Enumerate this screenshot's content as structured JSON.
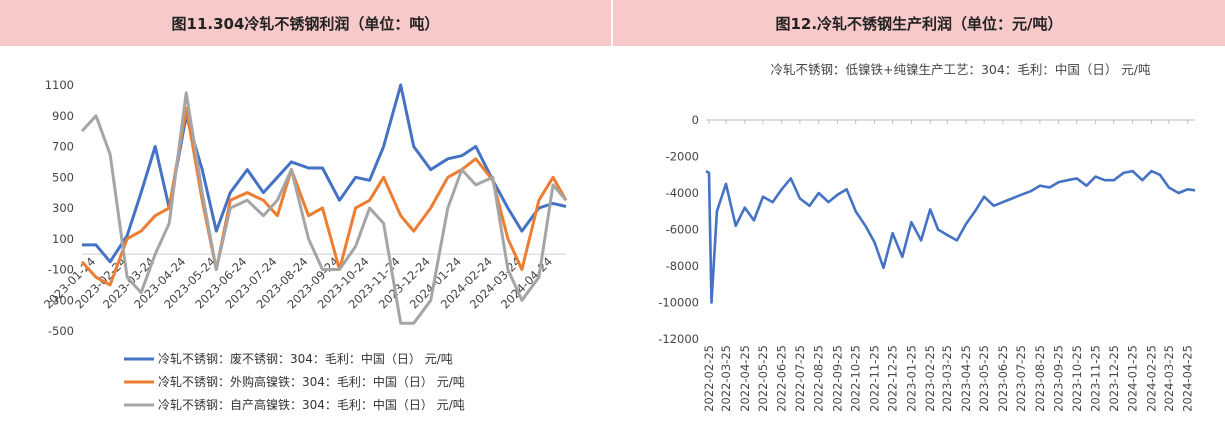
{
  "left": {
    "title": "图11.304冷轧不锈钢利润（单位：吨）",
    "chart_data": {
      "type": "line",
      "title": "图11.304冷轧不锈钢利润（单位：吨）",
      "ylim": [
        -500,
        1100
      ],
      "yticks": [
        -500,
        -300,
        -100,
        100,
        300,
        500,
        700,
        900,
        1100
      ],
      "xticks": [
        "2023-01-24",
        "2023-02-24",
        "2023-03-24",
        "2023-04-24",
        "2023-05-24",
        "2023-06-24",
        "2023-07-24",
        "2023-08-24",
        "2023-09-24",
        "2023-10-24",
        "2023-11-24",
        "2023-12-24",
        "2024-01-24",
        "2024-02-24",
        "2024-03-24",
        "2024-04-24"
      ],
      "x": [
        "2023-01-10",
        "2023-01-24",
        "2023-02-07",
        "2023-02-24",
        "2023-03-10",
        "2023-03-24",
        "2023-04-07",
        "2023-04-24",
        "2023-05-10",
        "2023-05-24",
        "2023-06-07",
        "2023-06-24",
        "2023-07-10",
        "2023-07-24",
        "2023-08-07",
        "2023-08-24",
        "2023-09-07",
        "2023-09-24",
        "2023-10-10",
        "2023-10-24",
        "2023-11-07",
        "2023-11-24",
        "2023-12-07",
        "2023-12-24",
        "2024-01-10",
        "2024-01-24",
        "2024-02-07",
        "2024-02-24",
        "2024-03-10",
        "2024-03-24",
        "2024-04-10",
        "2024-04-24",
        "2024-05-07"
      ],
      "series": [
        {
          "name": "冷轧不锈钢：废不锈钢：304：毛利：中国（日） 元/吨",
          "color": "#4472c4",
          "values": [
            60,
            60,
            -50,
            120,
            400,
            700,
            300,
            900,
            550,
            150,
            400,
            550,
            400,
            500,
            600,
            560,
            560,
            350,
            500,
            480,
            700,
            1100,
            700,
            550,
            620,
            640,
            700,
            480,
            300,
            150,
            300,
            330,
            310
          ]
        },
        {
          "name": "冷轧不锈钢：外购高镍铁：304：毛利：中国（日） 元/吨",
          "color": "#ed7d31",
          "values": [
            -50,
            -150,
            -200,
            100,
            150,
            250,
            300,
            950,
            350,
            -100,
            350,
            400,
            350,
            250,
            550,
            250,
            300,
            -100,
            300,
            350,
            500,
            250,
            150,
            300,
            500,
            550,
            620,
            480,
            100,
            -100,
            350,
            500,
            350
          ]
        },
        {
          "name": "冷轧不锈钢：自产高镍铁：304：毛利：中国（日） 元/吨",
          "color": "#a5a5a5",
          "values": [
            800,
            900,
            650,
            -150,
            -250,
            0,
            200,
            1050,
            400,
            -100,
            300,
            350,
            250,
            350,
            550,
            100,
            -100,
            -100,
            50,
            300,
            200,
            -450,
            -450,
            -300,
            300,
            550,
            450,
            500,
            -100,
            -300,
            -150,
            450,
            350
          ]
        }
      ]
    }
  },
  "right": {
    "title": "图12.冷轧不锈钢生产利润（单位：元/吨）",
    "chart_data": {
      "type": "line",
      "title": "冷轧不锈钢：低镍铁+纯镍生产工艺：304：毛利：中国（日） 元/吨",
      "ylim": [
        -12000,
        0
      ],
      "yticks": [
        0,
        -2000,
        -4000,
        -6000,
        -8000,
        -10000,
        -12000
      ],
      "xticks": [
        "2022-02-25",
        "2022-03-25",
        "2022-04-25",
        "2022-05-25",
        "2022-06-25",
        "2022-07-25",
        "2022-08-25",
        "2022-09-25",
        "2022-10-25",
        "2022-11-25",
        "2022-12-25",
        "2023-01-25",
        "2023-02-25",
        "2023-03-25",
        "2023-04-25",
        "2023-05-25",
        "2023-06-25",
        "2023-07-25",
        "2023-08-25",
        "2023-09-25",
        "2023-10-25",
        "2023-11-25",
        "2023-12-25",
        "2024-01-25",
        "2024-02-25",
        "2024-03-25",
        "2024-04-25"
      ],
      "x": [
        "2022-02-20",
        "2022-02-25",
        "2022-03-01",
        "2022-03-10",
        "2022-03-25",
        "2022-04-10",
        "2022-04-25",
        "2022-05-10",
        "2022-05-25",
        "2022-06-10",
        "2022-06-25",
        "2022-07-10",
        "2022-07-25",
        "2022-08-10",
        "2022-08-25",
        "2022-09-10",
        "2022-09-25",
        "2022-10-10",
        "2022-10-25",
        "2022-11-10",
        "2022-11-25",
        "2022-12-10",
        "2022-12-25",
        "2023-01-10",
        "2023-01-25",
        "2023-02-10",
        "2023-02-25",
        "2023-03-10",
        "2023-03-25",
        "2023-04-10",
        "2023-04-25",
        "2023-05-10",
        "2023-05-25",
        "2023-06-10",
        "2023-06-25",
        "2023-07-10",
        "2023-07-25",
        "2023-08-10",
        "2023-08-25",
        "2023-09-10",
        "2023-09-25",
        "2023-10-10",
        "2023-10-25",
        "2023-11-10",
        "2023-11-25",
        "2023-12-10",
        "2023-12-25",
        "2024-01-10",
        "2024-01-25",
        "2024-02-10",
        "2024-02-25",
        "2024-03-10",
        "2024-03-25",
        "2024-04-10",
        "2024-04-25",
        "2024-05-07"
      ],
      "series": [
        {
          "name": "冷轧不锈钢：低镍铁+纯镍生产工艺：304：毛利：中国（日） 元/吨",
          "color": "#4472c4",
          "values": [
            -2800,
            -2900,
            -10000,
            -5000,
            -3500,
            -5800,
            -4800,
            -5500,
            -4200,
            -4500,
            -3800,
            -3200,
            -4300,
            -4700,
            -4000,
            -4500,
            -4100,
            -3800,
            -5000,
            -5800,
            -6700,
            -8100,
            -6200,
            -7500,
            -5600,
            -6600,
            -4900,
            -6000,
            -6300,
            -6600,
            -5700,
            -5000,
            -4200,
            -4700,
            -4500,
            -4300,
            -4100,
            -3900,
            -3600,
            -3700,
            -3400,
            -3300,
            -3200,
            -3600,
            -3100,
            -3300,
            -3300,
            -2900,
            -2800,
            -3300,
            -2800,
            -3000,
            -3700,
            -4000,
            -3800,
            -3850
          ]
        }
      ]
    }
  }
}
